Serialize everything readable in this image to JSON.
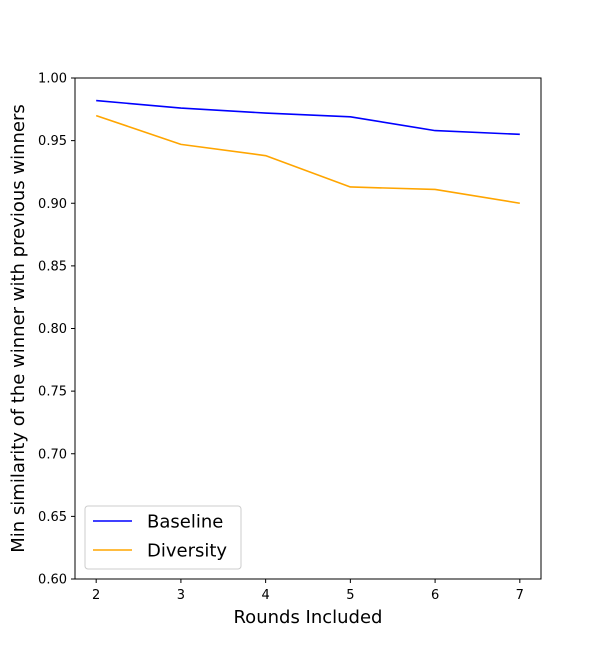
{
  "chart_data": {
    "type": "line",
    "title": "",
    "xlabel": "Rounds Included",
    "ylabel": "Min similarity of the winner with previous winners",
    "x": [
      2,
      3,
      4,
      5,
      6,
      7
    ],
    "xticks": [
      "2",
      "3",
      "4",
      "5",
      "6",
      "7"
    ],
    "xlim": [
      1.75,
      7.25
    ],
    "ylim": [
      0.6,
      1.0
    ],
    "yticks": [
      "0.60",
      "0.65",
      "0.70",
      "0.75",
      "0.80",
      "0.85",
      "0.90",
      "0.95",
      "1.00"
    ],
    "grid": false,
    "legend_position": "lower-left",
    "series": [
      {
        "name": "Baseline",
        "color": "#0000ff",
        "values": [
          0.982,
          0.976,
          0.972,
          0.969,
          0.958,
          0.955
        ]
      },
      {
        "name": "Diversity",
        "color": "#ffa500",
        "values": [
          0.97,
          0.947,
          0.938,
          0.913,
          0.911,
          0.9
        ]
      }
    ]
  }
}
